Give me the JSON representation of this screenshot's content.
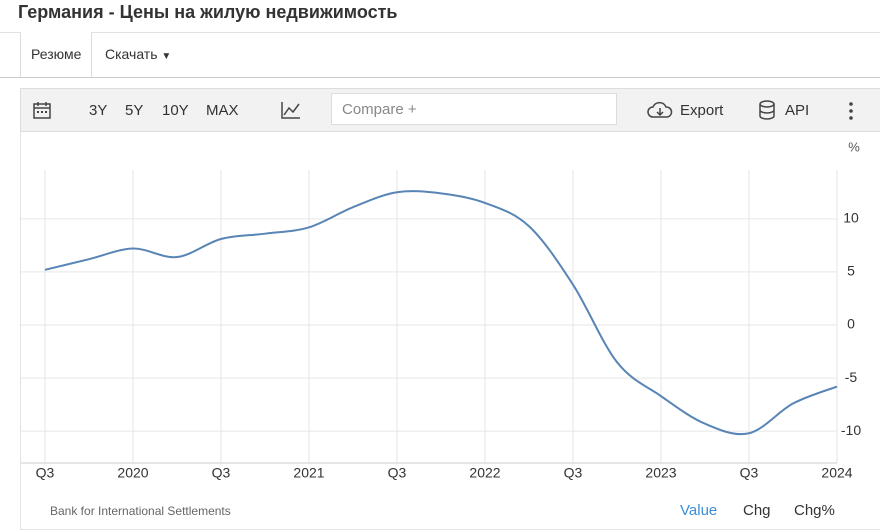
{
  "header": {
    "title": "Германия - Цены на жилую недвижимость"
  },
  "tabs": [
    "Резюме",
    "Скачать"
  ],
  "toolbar": {
    "ranges": [
      "3Y",
      "5Y",
      "10Y",
      "MAX"
    ],
    "compare_placeholder": "Compare +",
    "export": "Export",
    "api": "API"
  },
  "chart_data": {
    "type": "line",
    "unit": "%",
    "categories": [
      "Q3",
      null,
      "2020",
      null,
      "Q3",
      null,
      "2021",
      null,
      "Q3",
      null,
      "2022",
      null,
      "Q3",
      null,
      "2023",
      null,
      "Q3",
      null,
      "2024"
    ],
    "series": [
      {
        "name": "Value",
        "color": "#5885b5",
        "values": [
          5.2,
          6.2,
          7.2,
          6.4,
          8.1,
          8.6,
          9.2,
          11.1,
          12.5,
          12.4,
          11.5,
          9.3,
          3.8,
          -3.5,
          -6.7,
          -9.3,
          -10.2,
          -7.4,
          -5.8
        ]
      }
    ],
    "ylim": [
      -13,
      14.6
    ],
    "yticks": [
      -10,
      -5,
      0,
      5,
      10
    ],
    "grid": true
  },
  "footer": {
    "source": "Bank for International Settlements",
    "views": [
      "Value",
      "Chg",
      "Chg%"
    ]
  }
}
